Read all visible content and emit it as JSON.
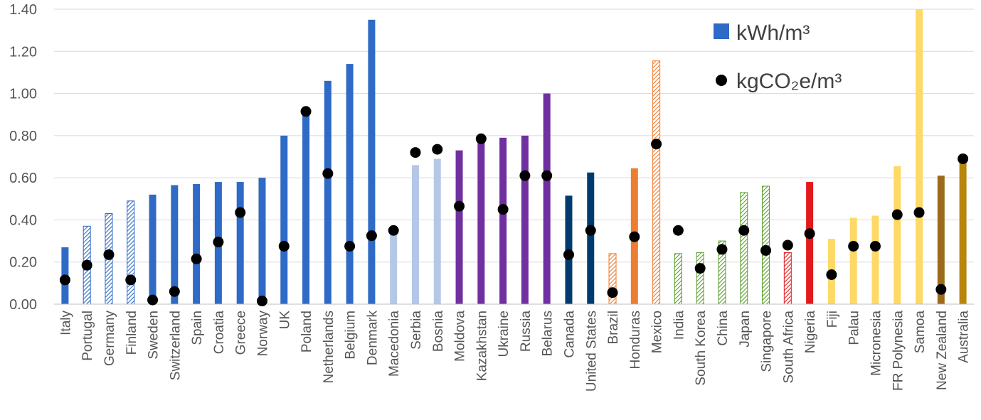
{
  "chart_data": {
    "type": "bar",
    "title": "",
    "xlabel": "",
    "ylabel": "",
    "ylim": [
      0,
      1.4
    ],
    "yticks": [
      0.0,
      0.2,
      0.4,
      0.6,
      0.8,
      1.0,
      1.2,
      1.4
    ],
    "ytick_labels": [
      "0.00",
      "0.20",
      "0.40",
      "0.60",
      "0.80",
      "1.00",
      "1.20",
      "1.40"
    ],
    "grid": true,
    "legend_position": "top-right",
    "legend": {
      "bar_label": "kWh/m³",
      "dot_label": "kgCO₂e/m³",
      "bar_color": "#2e6ac6",
      "dot_color": "#000000"
    },
    "categories": [
      "Italy",
      "Portugal",
      "Germany",
      "Finland",
      "Sweden",
      "Switzerland",
      "Spain",
      "Croatia",
      "Greece",
      "Norway",
      "UK",
      "Poland",
      "Netherlands",
      "Belgium",
      "Denmark",
      "Macedonia",
      "Serbia",
      "Bosnia",
      "Moldova",
      "Kazakhstan",
      "Ukraine",
      "Russia",
      "Belarus",
      "Canada",
      "United States",
      "Brazil",
      "Honduras",
      "Mexico",
      "India",
      "South Korea",
      "China",
      "Japan",
      "Singapore",
      "South Africa",
      "Nigeria",
      "Fiji",
      "Palau",
      "Micronesia",
      "FR Polynesia",
      "Samoa",
      "New Zealand",
      "Australia"
    ],
    "series": [
      {
        "name": "kWh/m³",
        "type": "bar",
        "values": [
          0.27,
          0.37,
          0.43,
          0.49,
          0.52,
          0.565,
          0.57,
          0.58,
          0.58,
          0.6,
          0.8,
          0.9,
          1.06,
          1.14,
          1.35,
          0.34,
          0.66,
          0.69,
          0.73,
          0.79,
          0.79,
          0.8,
          1.0,
          0.515,
          0.625,
          0.24,
          0.645,
          1.155,
          0.24,
          0.245,
          0.3,
          0.53,
          0.56,
          0.245,
          0.58,
          0.31,
          0.41,
          0.42,
          0.655,
          1.4,
          0.61,
          0.67
        ],
        "colors": [
          "#2e6ac6",
          "#2e6ac6",
          "#2e6ac6",
          "#2e6ac6",
          "#2e6ac6",
          "#2e6ac6",
          "#2e6ac6",
          "#2e6ac6",
          "#2e6ac6",
          "#2e6ac6",
          "#2e6ac6",
          "#2e6ac6",
          "#2e6ac6",
          "#2e6ac6",
          "#2e6ac6",
          "#b4c7e7",
          "#b4c7e7",
          "#b4c7e7",
          "#7030a0",
          "#7030a0",
          "#7030a0",
          "#7030a0",
          "#7030a0",
          "#003b6f",
          "#003b6f",
          "#ed7d31",
          "#ed7d31",
          "#ed7d31",
          "#5aa02c",
          "#5aa02c",
          "#5aa02c",
          "#5aa02c",
          "#5aa02c",
          "#e31a1c",
          "#e31a1c",
          "#ffd966",
          "#ffd966",
          "#ffd966",
          "#ffd966",
          "#ffd966",
          "#9c6b1a",
          "#b8860b"
        ],
        "hatched": [
          false,
          true,
          true,
          true,
          false,
          false,
          false,
          false,
          false,
          false,
          false,
          false,
          false,
          false,
          false,
          false,
          false,
          false,
          false,
          false,
          false,
          false,
          false,
          false,
          false,
          true,
          false,
          true,
          true,
          true,
          true,
          true,
          true,
          true,
          false,
          false,
          false,
          false,
          false,
          false,
          false,
          false
        ]
      },
      {
        "name": "kgCO₂e/m³",
        "type": "scatter",
        "values": [
          0.115,
          0.185,
          0.235,
          0.115,
          0.02,
          0.06,
          0.215,
          0.295,
          0.435,
          0.015,
          0.275,
          0.915,
          0.62,
          0.275,
          0.325,
          0.35,
          0.72,
          0.735,
          0.465,
          0.785,
          0.45,
          0.61,
          0.61,
          0.235,
          0.35,
          0.055,
          0.32,
          0.76,
          0.35,
          0.17,
          0.26,
          0.35,
          0.255,
          0.28,
          0.335,
          0.14,
          0.275,
          0.275,
          0.425,
          0.435,
          0.07,
          0.69
        ]
      }
    ]
  }
}
